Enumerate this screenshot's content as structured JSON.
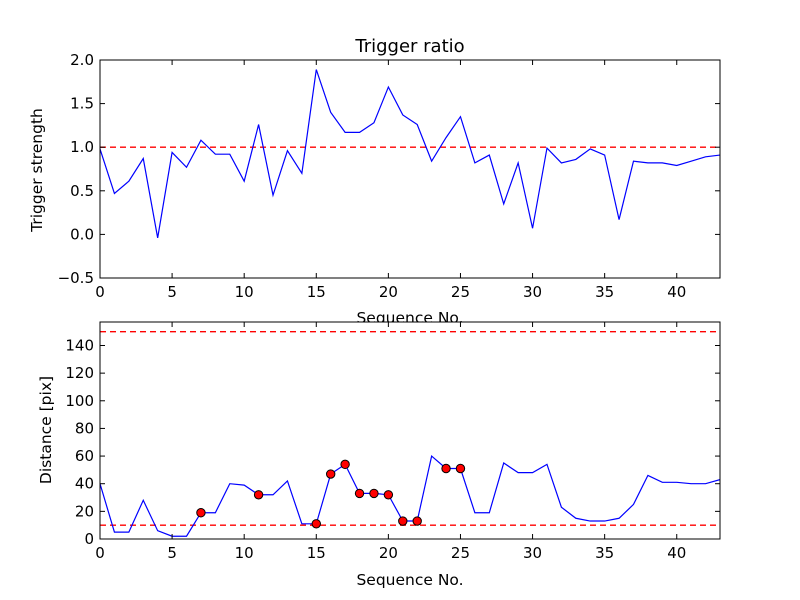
{
  "chart_data": [
    {
      "type": "line",
      "title": "Trigger ratio",
      "xlabel": "Sequence No.",
      "ylabel": "Trigger strength",
      "xlim": [
        0,
        43
      ],
      "ylim": [
        -0.5,
        2.0
      ],
      "xticks": [
        "0",
        "5",
        "10",
        "15",
        "20",
        "25",
        "30",
        "35",
        "40"
      ],
      "yticks": [
        "−0.5",
        "0.0",
        "0.5",
        "1.0",
        "1.5",
        "2.0"
      ],
      "grid": false,
      "line_color": "#0000ff",
      "threshold_color": "#ff0000",
      "thresholds": [
        1.0
      ],
      "series": [
        {
          "x": [
            0,
            1,
            2,
            3,
            4,
            5,
            6,
            7,
            8,
            9,
            10,
            11,
            12,
            13,
            14,
            15,
            16,
            17,
            18,
            19,
            20,
            21,
            22,
            23,
            24,
            25,
            26,
            27,
            28,
            29,
            30,
            31,
            32,
            33,
            34,
            35,
            36,
            37,
            38,
            39,
            40,
            41,
            42,
            43
          ],
          "values": [
            0.98,
            0.47,
            0.61,
            0.87,
            -0.04,
            0.94,
            0.77,
            1.08,
            0.92,
            0.92,
            0.61,
            1.26,
            0.45,
            0.96,
            0.7,
            1.89,
            1.4,
            1.17,
            1.17,
            1.28,
            1.69,
            1.37,
            1.26,
            0.84,
            1.11,
            1.35,
            0.82,
            0.91,
            0.35,
            0.82,
            0.07,
            0.99,
            0.82,
            0.86,
            0.98,
            0.91,
            0.17,
            0.84,
            0.82,
            0.82,
            0.79,
            0.84,
            0.89,
            0.91
          ]
        }
      ]
    },
    {
      "type": "line",
      "title": "",
      "xlabel": "Sequence No.",
      "ylabel": "Distance [pix]",
      "xlim": [
        0,
        43
      ],
      "ylim": [
        0,
        157
      ],
      "xticks": [
        "0",
        "5",
        "10",
        "15",
        "20",
        "25",
        "30",
        "35",
        "40"
      ],
      "yticks": [
        "0",
        "20",
        "40",
        "60",
        "80",
        "100",
        "120",
        "140"
      ],
      "grid": false,
      "line_color": "#0000ff",
      "threshold_color": "#ff0000",
      "marker_color": "#ff0000",
      "thresholds": [
        10,
        150
      ],
      "series": [
        {
          "x": [
            0,
            1,
            2,
            3,
            4,
            5,
            6,
            7,
            8,
            9,
            10,
            11,
            12,
            13,
            14,
            15,
            16,
            17,
            18,
            19,
            20,
            21,
            22,
            23,
            24,
            25,
            26,
            27,
            28,
            29,
            30,
            31,
            32,
            33,
            34,
            35,
            36,
            37,
            38,
            39,
            40,
            41,
            42,
            43
          ],
          "values": [
            40,
            5,
            5,
            28,
            6,
            2,
            2,
            19,
            19,
            40,
            39,
            32,
            32,
            42,
            11,
            11,
            47,
            54,
            33,
            33,
            32,
            13,
            13,
            60,
            51,
            51,
            19,
            19,
            55,
            48,
            48,
            54,
            23,
            15,
            13,
            13,
            15,
            25,
            46,
            41,
            41,
            40,
            40,
            43
          ]
        }
      ],
      "highlighted_points": {
        "x": [
          7,
          11,
          15,
          16,
          17,
          18,
          19,
          20,
          21,
          22,
          24,
          25
        ],
        "values": [
          19,
          32,
          11,
          47,
          54,
          33,
          33,
          32,
          13,
          13,
          51,
          51
        ]
      }
    }
  ]
}
